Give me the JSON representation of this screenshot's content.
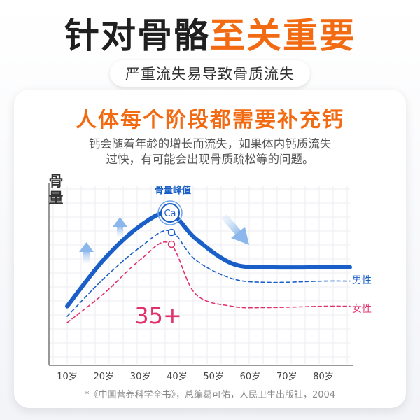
{
  "header": {
    "title_dark": "针对骨骼",
    "title_orange": "至关重要",
    "subtitle": "严重流失易导致骨质流失"
  },
  "card": {
    "title": "人体每个阶段都需要补充钙",
    "desc_line1": "钙会随着年龄的增长而流失，如果体内钙质流失",
    "desc_line2": "过快，有可能会出现骨质疏松等的问题。",
    "footnote": "*《中国营养科学全书》，总编葛可佑，人民卫生出版社，2004"
  },
  "colors": {
    "accent_orange": "#f26a12",
    "male_line": "#1a5fc8",
    "female_line": "#e0336e",
    "age_label": "#e0336e"
  },
  "chart_data": {
    "type": "line",
    "ylabel": "骨量",
    "x_ticks": [
      "10岁",
      "20岁",
      "30岁",
      "40岁",
      "50岁",
      "60岁",
      "70岁",
      "80岁"
    ],
    "x_values": [
      10,
      20,
      30,
      40,
      50,
      60,
      70,
      80
    ],
    "peak_label": "骨量峰值",
    "peak_icon_text": "Ca",
    "age_annotation": "35+",
    "series": [
      {
        "name": "男性",
        "x": [
          10,
          20,
          30,
          38,
          45,
          55,
          65,
          80
        ],
        "y": [
          0.18,
          0.55,
          0.82,
          0.92,
          0.72,
          0.52,
          0.49,
          0.49
        ],
        "color": "#1a5fc8"
      },
      {
        "name": "",
        "x": [
          10,
          20,
          30,
          38,
          45,
          55,
          65,
          80
        ],
        "y": [
          0.1,
          0.4,
          0.65,
          0.78,
          0.55,
          0.4,
          0.37,
          0.38
        ],
        "color": "#1a5fc8"
      },
      {
        "name": "女性",
        "x": [
          10,
          20,
          30,
          38,
          45,
          55,
          65,
          80
        ],
        "y": [
          0.05,
          0.28,
          0.55,
          0.68,
          0.28,
          0.18,
          0.17,
          0.18
        ],
        "color": "#e0336e"
      }
    ],
    "grid": true
  }
}
